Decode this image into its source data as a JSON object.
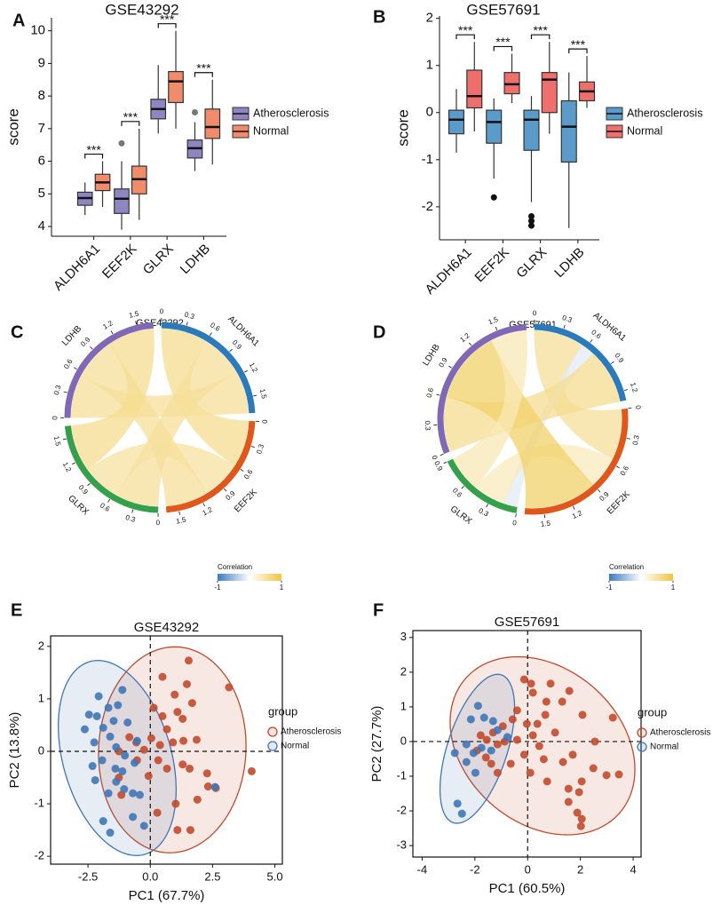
{
  "chart_data": [
    {
      "panel_label": "A",
      "type": "box",
      "title": "GSE43292",
      "ylabel": "score",
      "categories": [
        "ALDH6A1",
        "EEF2K",
        "GLRX",
        "LDHB"
      ],
      "ylim": [
        3.7,
        10.4
      ],
      "yticks": [
        4,
        5,
        6,
        7,
        8,
        9,
        10
      ],
      "annotations": [
        "***",
        "***",
        "***",
        "***"
      ],
      "series": [
        {
          "name": "Atherosclerosis",
          "color": "#8e86c1",
          "boxes": [
            {
              "min": 4.35,
              "q1": 4.65,
              "median": 4.87,
              "q3": 5.05,
              "max": 5.35
            },
            {
              "min": 3.9,
              "q1": 4.4,
              "median": 4.85,
              "q3": 5.15,
              "max": 6.0,
              "outliers": [
                6.55
              ]
            },
            {
              "min": 6.85,
              "q1": 7.3,
              "median": 7.6,
              "q3": 7.9,
              "max": 8.95
            },
            {
              "min": 5.7,
              "q1": 6.1,
              "median": 6.4,
              "q3": 6.65,
              "max": 7.2,
              "outliers": [
                7.5
              ]
            }
          ]
        },
        {
          "name": "Normal",
          "color": "#f08b6b",
          "boxes": [
            {
              "min": 4.6,
              "q1": 5.1,
              "median": 5.35,
              "q3": 5.6,
              "max": 6.0
            },
            {
              "min": 4.2,
              "q1": 5.0,
              "median": 5.45,
              "q3": 5.85,
              "max": 7.0
            },
            {
              "min": 7.0,
              "q1": 7.8,
              "median": 8.45,
              "q3": 8.75,
              "max": 10.0
            },
            {
              "min": 5.9,
              "q1": 6.7,
              "median": 7.05,
              "q3": 7.6,
              "max": 8.5
            }
          ]
        }
      ]
    },
    {
      "panel_label": "B",
      "type": "box",
      "title": "GSE57691",
      "ylabel": "score",
      "categories": [
        "ALDH6A1",
        "EEF2K",
        "GLRX",
        "LDHB"
      ],
      "ylim": [
        -2.7,
        2.05
      ],
      "yticks": [
        -2,
        -1,
        0,
        1,
        2
      ],
      "annotations": [
        "***",
        "***",
        "***",
        "***"
      ],
      "series": [
        {
          "name": "Atherosclerosis",
          "color": "#5b9bc9",
          "boxes": [
            {
              "min": -0.85,
              "q1": -0.45,
              "median": -0.15,
              "q3": 0.05,
              "max": 0.5
            },
            {
              "min": -1.4,
              "q1": -0.65,
              "median": -0.2,
              "q3": 0.05,
              "max": 0.3,
              "outliers": [
                -1.8
              ]
            },
            {
              "min": -1.9,
              "q1": -0.8,
              "median": -0.15,
              "q3": 0.05,
              "max": 0.35,
              "outliers": [
                -2.2,
                -2.3,
                -2.4
              ]
            },
            {
              "min": -2.45,
              "q1": -1.05,
              "median": -0.3,
              "q3": 0.25,
              "max": 0.85
            }
          ]
        },
        {
          "name": "Normal",
          "color": "#ef6f6c",
          "boxes": [
            {
              "min": -0.4,
              "q1": 0.1,
              "median": 0.35,
              "q3": 0.9,
              "max": 1.5
            },
            {
              "min": 0.2,
              "q1": 0.4,
              "median": 0.6,
              "q3": 0.85,
              "max": 1.25
            },
            {
              "min": -0.45,
              "q1": 0.0,
              "median": 0.7,
              "q3": 0.85,
              "max": 1.5
            },
            {
              "min": 0.1,
              "q1": 0.25,
              "median": 0.45,
              "q3": 0.65,
              "max": 1.2
            }
          ]
        }
      ]
    },
    {
      "panel_label": "C",
      "type": "chord",
      "title": "GSE43292",
      "sectors": [
        {
          "name": "ALDH6A1",
          "color": "#2b7bba",
          "ticks": [
            0,
            0.3,
            0.6,
            0.9,
            1.2,
            1.5
          ]
        },
        {
          "name": "EEF2K",
          "color": "#e0571c",
          "ticks": [
            0,
            0.3,
            0.6,
            0.9,
            1.2,
            1.5
          ]
        },
        {
          "name": "GLRX",
          "color": "#34a04a",
          "ticks": [
            0,
            0.3,
            0.6,
            0.9,
            1.2,
            1.5
          ]
        },
        {
          "name": "LDHB",
          "color": "#7f68b6",
          "ticks": [
            0,
            0.3,
            0.6,
            0.9,
            1.2,
            1.5
          ]
        }
      ],
      "links": [
        {
          "source": "ALDH6A1",
          "target": "EEF2K",
          "value": 0.6
        },
        {
          "source": "ALDH6A1",
          "target": "GLRX",
          "value": 0.55
        },
        {
          "source": "ALDH6A1",
          "target": "LDHB",
          "value": 0.55
        },
        {
          "source": "EEF2K",
          "target": "GLRX",
          "value": 0.5
        },
        {
          "source": "EEF2K",
          "target": "LDHB",
          "value": 0.55
        },
        {
          "source": "GLRX",
          "target": "LDHB",
          "value": 0.6
        }
      ],
      "legend_title": "Correlation",
      "colorbar_ticks": [
        -1,
        1
      ],
      "colors": [
        "#3b7cc0",
        "#ffffff",
        "#eec545"
      ]
    },
    {
      "panel_label": "D",
      "type": "chord",
      "title": "GSE57691",
      "sectors": [
        {
          "name": "ALDH6A1",
          "color": "#2b7bba",
          "ticks": [
            0,
            0.3,
            0.6,
            0.9,
            1.2
          ]
        },
        {
          "name": "EEF2K",
          "color": "#e0571c",
          "ticks": [
            0,
            0.3,
            0.6,
            0.9,
            1.2,
            1.5
          ]
        },
        {
          "name": "GLRX",
          "color": "#34a04a",
          "ticks": [
            0,
            0.3,
            0.6,
            0.9
          ]
        },
        {
          "name": "LDHB",
          "color": "#7f68b6",
          "ticks": [
            0,
            0.3,
            0.6,
            0.9,
            1.2,
            1.5
          ]
        }
      ],
      "links": [
        {
          "source": "ALDH6A1",
          "target": "EEF2K",
          "value": 0.55
        },
        {
          "source": "ALDH6A1",
          "target": "GLRX",
          "value": -0.15
        },
        {
          "source": "ALDH6A1",
          "target": "LDHB",
          "value": 0.6
        },
        {
          "source": "EEF2K",
          "target": "GLRX",
          "value": 0.35
        },
        {
          "source": "EEF2K",
          "target": "LDHB",
          "value": 0.8
        },
        {
          "source": "GLRX",
          "target": "LDHB",
          "value": 0.4
        }
      ],
      "legend_title": "Correlation",
      "colorbar_ticks": [
        -1,
        1
      ],
      "colors": [
        "#3b7cc0",
        "#ffffff",
        "#eec545"
      ]
    },
    {
      "panel_label": "E",
      "type": "pca",
      "title": "GSE43292",
      "xlabel": "PC1 (67.7%)",
      "ylabel": "PC2 (13.8%)",
      "xlim": [
        -4.0,
        5.3
      ],
      "xticks": [
        -2.5,
        {
          "value": 0,
          "label": "0.0"
        },
        2.5,
        {
          "value": 5,
          "label": "5.0"
        }
      ],
      "ylim": [
        -2.15,
        2.2
      ],
      "yticks": [
        -2,
        -1,
        0,
        1,
        2
      ],
      "legend_title": "group",
      "series": [
        {
          "name": "Atherosclerosis",
          "color": "#c14a2c",
          "x": [
            1.54,
            3.16,
            1.47,
            0.49,
            1.68,
            0.98,
            0.14,
            0.49,
            1.09,
            1.3,
            0.67,
            0.04,
            1.86,
            1.33,
            0.91,
            0.39,
            -0.25,
            -0.84,
            -1.26,
            -0.53,
            0.32,
            1.3,
            0.67,
            1.58,
            2.28,
            4.07,
            2.32,
            2.63,
            1.89,
            1.02,
            0.28,
            1.61,
            1.09,
            -1.26,
            -1.16,
            -0.56,
            -0.07
          ],
          "y": [
            1.73,
            1.22,
            1.28,
            1.42,
            0.92,
            1.08,
            0.83,
            0.67,
            0.75,
            0.62,
            0.42,
            0.25,
            0.22,
            0.2,
            0.17,
            0.12,
            0.03,
            0.27,
            0,
            -0.17,
            -0.17,
            -0.25,
            -0.33,
            -0.33,
            -0.42,
            -0.38,
            -0.67,
            -0.7,
            -0.92,
            -1.0,
            -1.17,
            -1.5,
            -1.5,
            -0.5,
            -0.83,
            0.17,
            -0.47
          ]
        },
        {
          "name": "Normal",
          "color": "#3f76b5",
          "x": [
            -1.12,
            -2.07,
            -1.68,
            -1.3,
            -2.46,
            -2.14,
            -1.47,
            -0.91,
            -1.89,
            -2.63,
            -1.61,
            -0.53,
            -2.25,
            -1.37,
            -1.93,
            -1.02,
            -0.63,
            -2.32,
            -1.4,
            -1.12,
            -2.21,
            -1.37,
            -1.05,
            -1.68,
            -0.7,
            -0.42,
            2.6,
            -1.89,
            -0.25,
            -1.61,
            -0.7
          ],
          "y": [
            1.17,
            1.05,
            0.83,
            0.88,
            0.7,
            0.67,
            0.58,
            0.55,
            0.45,
            0.42,
            0.28,
            0.2,
            0.17,
            0.08,
            -0.17,
            -0.08,
            -0.22,
            -0.28,
            -0.33,
            -0.38,
            -0.55,
            -0.58,
            -0.72,
            -0.8,
            -0.8,
            -0.83,
            -0.68,
            -1.33,
            -1.42,
            -1.55,
            -1.25
          ]
        }
      ]
    },
    {
      "panel_label": "F",
      "type": "pca",
      "title": "GSE57691",
      "xlabel": "PC1 (60.5%)",
      "ylabel": "PC2 (27.7%)",
      "xlim": [
        -4.35,
        4.3
      ],
      "xticks": [
        -4,
        -2,
        0,
        2,
        4
      ],
      "ylim": [
        -3.33,
        3.2
      ],
      "yticks": [
        -3,
        -2,
        -1,
        0,
        1,
        2,
        3
      ],
      "legend_title": "group",
      "series": [
        {
          "name": "Atherosclerosis",
          "color": "#c14a2c",
          "x": [
            -0.13,
            0.13,
            0.87,
            1.31,
            1.58,
            2.08,
            3.23,
            0.71,
            0.2,
            -0.4,
            -0.57,
            -0.03,
            0.37,
            0.67,
            1.04,
            -0.94,
            -1.31,
            -1.55,
            -1.14,
            -0.87,
            -0.4,
            0.2,
            0.44,
            -0.13,
            0.61,
            1.34,
            1.71,
            2.55,
            2.99,
            3.46,
            2.49,
            2.05,
            1.55,
            1.95,
            1.55,
            1.88,
            2.05,
            2.02,
            0.74,
            0.1,
            -0.64,
            -1.38,
            -1.92,
            -1.58,
            -1.14,
            -1.78
          ],
          "y": [
            1.79,
            1.67,
            1.67,
            1.15,
            1.46,
            0.77,
            0.69,
            1.15,
            1.41,
            0.9,
            0.64,
            0.51,
            0.51,
            0.77,
            0.26,
            0.44,
            0.26,
            0.05,
            -0.08,
            0,
            0.05,
            0.18,
            -0.13,
            -0.38,
            -0.51,
            -0.59,
            -0.38,
            0,
            -0.97,
            -0.95,
            -0.77,
            -1.15,
            -1.36,
            -1.46,
            -1.74,
            -2.05,
            -2.23,
            -2.44,
            -1.15,
            -0.9,
            -0.64,
            -0.64,
            -0.26,
            -0.46,
            -0.9,
            0.18
          ]
        },
        {
          "name": "Normal",
          "color": "#3f76b5",
          "x": [
            -1.88,
            -1.65,
            -2.15,
            -1.31,
            -1.14,
            -0.77,
            -2.32,
            -2.76,
            -2.05,
            -1.75,
            -2.32,
            -1.38,
            -2.66,
            -2.49,
            -1.98
          ],
          "y": [
            1.03,
            0.69,
            0.64,
            0.59,
            0.33,
            0.13,
            -0.08,
            -0.33,
            -0.33,
            -0.18,
            -0.59,
            -0.26,
            -1.79,
            -2.08,
            -0.9
          ]
        }
      ]
    }
  ]
}
